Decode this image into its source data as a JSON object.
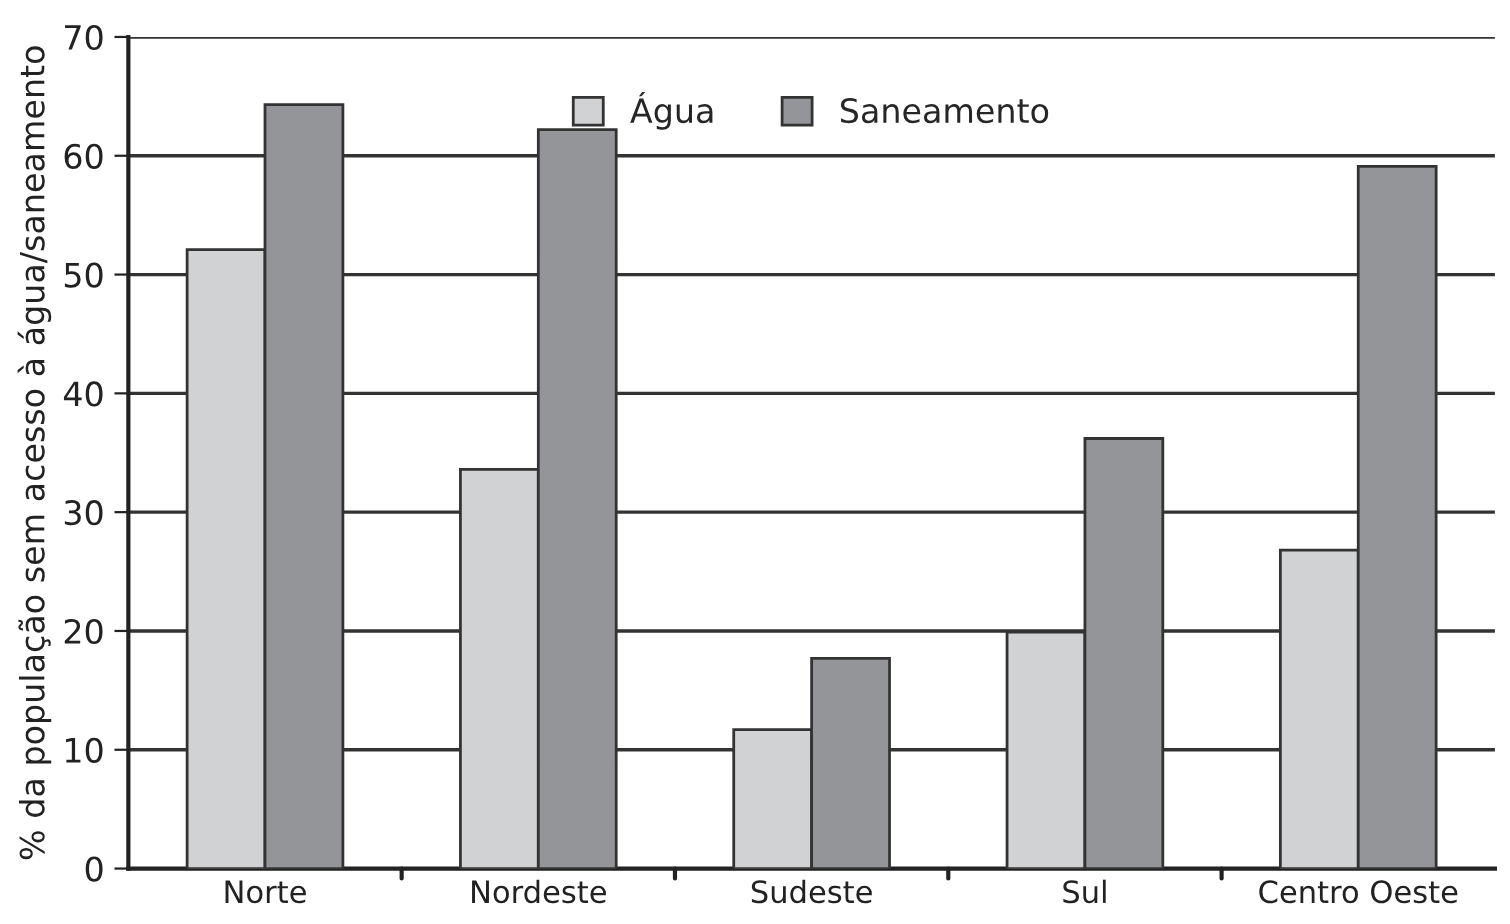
{
  "chart_data": {
    "type": "bar",
    "ylabel": "% da população sem acesso à água/saneamento",
    "categories": [
      "Norte",
      "Nordeste",
      "Sudeste",
      "Sul",
      "Centro Oeste"
    ],
    "series": [
      {
        "name": "Água",
        "color": "#d1d2d4",
        "values": [
          52.1,
          33.6,
          11.7,
          19.9,
          26.8
        ]
      },
      {
        "name": "Saneamento",
        "color": "#939598",
        "values": [
          64.3,
          62.2,
          17.7,
          36.2,
          59.1
        ]
      }
    ],
    "ylim": [
      0,
      70
    ],
    "yticks": [
      0,
      10,
      20,
      30,
      40,
      50,
      60,
      70
    ],
    "grid": "y",
    "legend": "top"
  }
}
